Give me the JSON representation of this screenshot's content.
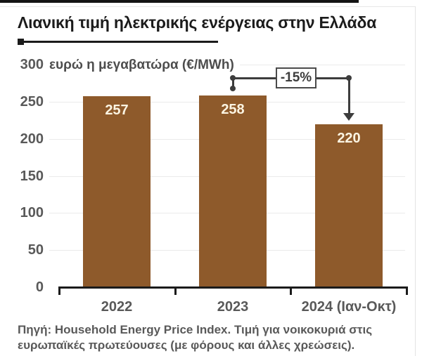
{
  "chart_data": {
    "type": "bar",
    "title": "Λιανική τιμή ηλεκτρικής ενέργειας στην Ελλάδα",
    "unit_label": "ευρώ η μεγαβατώρα (€/MWh)",
    "categories": [
      "2022",
      "2023",
      "2024 (Ιαν-Οκτ)"
    ],
    "values": [
      257,
      258,
      220
    ],
    "ylim": [
      0,
      300
    ],
    "yticks": [
      0,
      50,
      100,
      150,
      200,
      250,
      300
    ],
    "grid": true,
    "legend": "none",
    "annotation": {
      "label": "-15%",
      "from_category": "2023",
      "to_category": "2024 (Ιαν-Οκτ)"
    },
    "bar_color": "#8e5a2b",
    "value_label_color": "#fbf4e2"
  },
  "source": {
    "line1": "Πηγή: Household Energy Price Index. Τιμή για νοικοκυριά στις",
    "line2": "ευρωπαϊκές πρωτεύουσες (με φόρους και άλλες χρεώσεις)."
  },
  "colors": {
    "bar": "#8e5a2b",
    "axis_text": "#595959",
    "axis_line": "#1b1b1b",
    "gridline": "#eaeaea",
    "annotation": "#3d3d3d",
    "title": "#1b1b1b",
    "top_strip": "#141414"
  }
}
